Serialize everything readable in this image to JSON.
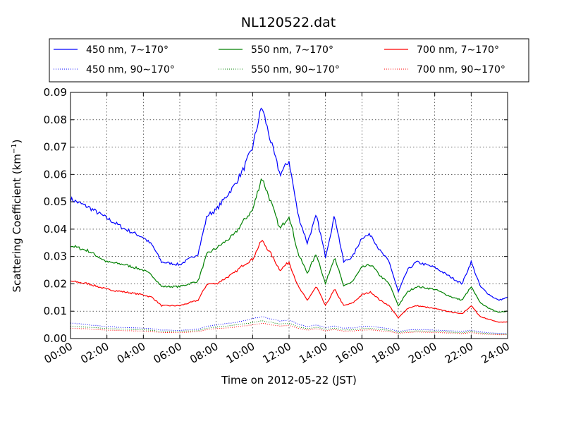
{
  "chart_data": {
    "type": "line",
    "title": "NL120522.dat",
    "xlabel": "Time on 2012-05-22 (JST)",
    "ylabel": "Scattering Coefficient (km",
    "ylabel_sup": "−1",
    "ylabel_end": ")",
    "xlim": [
      "00:00",
      "24:00"
    ],
    "ylim": [
      0,
      0.09
    ],
    "grid": true,
    "legend_position": "top, outside plot, 3 columns",
    "x_ticks": [
      "00:00",
      "02:00",
      "04:00",
      "06:00",
      "08:00",
      "10:00",
      "12:00",
      "14:00",
      "16:00",
      "18:00",
      "20:00",
      "22:00",
      "24:00"
    ],
    "y_ticks": [
      "0.00",
      "0.01",
      "0.02",
      "0.03",
      "0.04",
      "0.05",
      "0.06",
      "0.07",
      "0.08",
      "0.09"
    ],
    "x": [
      "00:00",
      "01:00",
      "02:00",
      "03:00",
      "04:00",
      "04:30",
      "05:00",
      "06:00",
      "07:00",
      "07:30",
      "08:00",
      "09:00",
      "09:30",
      "10:00",
      "10:30",
      "11:00",
      "11:30",
      "12:00",
      "12:30",
      "13:00",
      "13:30",
      "14:00",
      "14:30",
      "15:00",
      "15:30",
      "16:00",
      "16:30",
      "17:00",
      "17:30",
      "18:00",
      "18:30",
      "19:00",
      "20:00",
      "21:00",
      "21:30",
      "22:00",
      "22:30",
      "23:00",
      "23:30",
      "24:00"
    ],
    "series": [
      {
        "name": "450 nm, 7∼170°",
        "style": "solid",
        "color": "#0000ff",
        "values": [
          0.051,
          0.048,
          0.044,
          0.04,
          0.037,
          0.034,
          0.028,
          0.027,
          0.031,
          0.045,
          0.047,
          0.056,
          0.062,
          0.07,
          0.085,
          0.072,
          0.06,
          0.065,
          0.045,
          0.035,
          0.045,
          0.03,
          0.045,
          0.028,
          0.03,
          0.037,
          0.038,
          0.032,
          0.028,
          0.017,
          0.025,
          0.028,
          0.026,
          0.022,
          0.02,
          0.028,
          0.019,
          0.016,
          0.014,
          0.015
        ]
      },
      {
        "name": "450 nm, 90∼170°",
        "style": "dotted",
        "color": "#0000ff",
        "values": [
          0.0057,
          0.005,
          0.0044,
          0.004,
          0.0038,
          0.0036,
          0.0031,
          0.003,
          0.0034,
          0.0045,
          0.005,
          0.0058,
          0.0065,
          0.0072,
          0.008,
          0.0072,
          0.0064,
          0.0068,
          0.0052,
          0.0044,
          0.005,
          0.004,
          0.0046,
          0.0038,
          0.0039,
          0.0044,
          0.0045,
          0.004,
          0.0036,
          0.0026,
          0.0031,
          0.0033,
          0.0031,
          0.0028,
          0.0026,
          0.0031,
          0.0024,
          0.0021,
          0.0019,
          0.0019
        ]
      },
      {
        "name": "550 nm, 7∼170°",
        "style": "solid",
        "color": "#008000",
        "values": [
          0.034,
          0.032,
          0.028,
          0.027,
          0.025,
          0.023,
          0.019,
          0.019,
          0.021,
          0.031,
          0.033,
          0.038,
          0.043,
          0.047,
          0.059,
          0.05,
          0.04,
          0.045,
          0.031,
          0.024,
          0.031,
          0.02,
          0.03,
          0.019,
          0.021,
          0.026,
          0.027,
          0.023,
          0.02,
          0.012,
          0.017,
          0.019,
          0.018,
          0.015,
          0.014,
          0.019,
          0.013,
          0.011,
          0.0095,
          0.01
        ]
      },
      {
        "name": "550 nm, 90∼170°",
        "style": "dotted",
        "color": "#008000",
        "values": [
          0.0045,
          0.0041,
          0.0037,
          0.0034,
          0.0032,
          0.003,
          0.0026,
          0.0026,
          0.0029,
          0.0038,
          0.0042,
          0.0049,
          0.0054,
          0.0058,
          0.0065,
          0.006,
          0.0053,
          0.0056,
          0.0043,
          0.0036,
          0.0042,
          0.0033,
          0.0038,
          0.0031,
          0.0032,
          0.0036,
          0.0037,
          0.0033,
          0.003,
          0.0022,
          0.0026,
          0.0028,
          0.0026,
          0.0023,
          0.0021,
          0.0026,
          0.002,
          0.0018,
          0.0016,
          0.0016
        ]
      },
      {
        "name": "700 nm, 7∼170°",
        "style": "solid",
        "color": "#ff0000",
        "values": [
          0.021,
          0.02,
          0.018,
          0.017,
          0.016,
          0.015,
          0.012,
          0.012,
          0.014,
          0.02,
          0.02,
          0.024,
          0.027,
          0.029,
          0.036,
          0.031,
          0.025,
          0.028,
          0.019,
          0.014,
          0.019,
          0.012,
          0.018,
          0.012,
          0.013,
          0.016,
          0.017,
          0.014,
          0.012,
          0.0075,
          0.011,
          0.012,
          0.011,
          0.0095,
          0.009,
          0.012,
          0.008,
          0.007,
          0.006,
          0.006
        ]
      },
      {
        "name": "700 nm, 90∼170°",
        "style": "dotted",
        "color": "#ff0000",
        "values": [
          0.0038,
          0.0035,
          0.0031,
          0.0029,
          0.0027,
          0.0025,
          0.0022,
          0.0022,
          0.0025,
          0.0033,
          0.0036,
          0.0042,
          0.0046,
          0.005,
          0.0056,
          0.0051,
          0.0045,
          0.0048,
          0.0037,
          0.0031,
          0.0036,
          0.0028,
          0.0033,
          0.0027,
          0.0028,
          0.0031,
          0.0032,
          0.0028,
          0.0026,
          0.0019,
          0.0022,
          0.0024,
          0.0022,
          0.002,
          0.0018,
          0.0022,
          0.0017,
          0.0015,
          0.0014,
          0.0014
        ]
      }
    ]
  }
}
